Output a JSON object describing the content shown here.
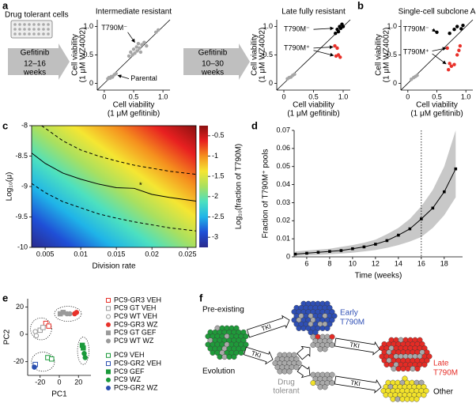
{
  "panel_labels": [
    "a",
    "b",
    "c",
    "d",
    "e",
    "f"
  ],
  "panel_a": {
    "start_label": "Drug tolerant cells",
    "steps": [
      {
        "drug": "Gefitinib",
        "duration": [
          "12–16",
          "weeks"
        ]
      },
      {
        "drug": "Gefitinib",
        "duration": [
          "10–30",
          "weeks"
        ]
      }
    ]
  },
  "panel_f": {
    "pre_existing": "Pre-existing",
    "evolution": "Evolution",
    "early": [
      "Early",
      "T790M"
    ],
    "drug_tolerant": [
      "Drug",
      "tolerant"
    ],
    "late": [
      "Late",
      "T790M"
    ],
    "other": "Other",
    "tki": [
      "TKI",
      "TKI",
      "TKI",
      "TKI"
    ]
  },
  "chart_data": [
    {
      "type": "scatter",
      "title": "Intermediate resistant",
      "xlabel": [
        "Cell viability",
        "(1 μM gefitinib)"
      ],
      "ylabel": [
        "Cell viability",
        "(1 μM WZ4002)"
      ],
      "xlim": [
        -0.12,
        1.12
      ],
      "ylim": [
        -0.12,
        1.12
      ],
      "xticks": [
        0,
        0.5,
        {
          "value": 1,
          "label": "1.0"
        }
      ],
      "yticks": [
        0,
        0.5,
        {
          "value": 1,
          "label": "1.0"
        }
      ],
      "diagonal": true,
      "annotations": [
        "T790M⁻",
        "Parental"
      ],
      "series": [
        {
          "color": "#a6a6a6",
          "x": [
            0.06,
            0.08,
            0.1,
            0.12,
            0.14,
            0.17,
            0.2,
            0.42,
            0.45,
            0.48,
            0.5,
            0.52,
            0.55,
            0.56,
            0.58,
            0.6,
            0.62,
            0.64,
            0.68,
            0.72,
            0.88,
            0.92
          ],
          "values": [
            0.08,
            0.1,
            0.09,
            0.12,
            0.11,
            0.15,
            0.17,
            0.48,
            0.55,
            0.5,
            0.6,
            0.53,
            0.64,
            0.57,
            0.7,
            0.62,
            0.55,
            0.68,
            0.72,
            0.66,
            0.9,
            0.94
          ]
        }
      ]
    },
    {
      "type": "scatter",
      "title": "Late fully resistant",
      "xlabel": [
        "Cell viability",
        "(1 μM gefitinib)"
      ],
      "ylabel": [
        "Cell viability",
        "(1 μM WZ4002)"
      ],
      "xlim": [
        -0.12,
        1.12
      ],
      "ylim": [
        -0.12,
        1.12
      ],
      "xticks": [
        0,
        0.5,
        {
          "value": 1,
          "label": "1.0"
        }
      ],
      "yticks": [
        0,
        0.5,
        {
          "value": 1,
          "label": "1.0"
        }
      ],
      "diagonal": true,
      "annotations": [
        "T790M⁻",
        "T790M⁺"
      ],
      "series": [
        {
          "color": "#a6a6a6",
          "x": [
            0.06,
            0.09,
            0.12,
            0.15,
            0.18
          ],
          "values": [
            0.08,
            0.1,
            0.11,
            0.14,
            0.16
          ]
        },
        {
          "color": "#000000",
          "x": [
            0.87,
            0.9,
            0.92,
            0.94,
            0.96,
            0.98,
            1.0
          ],
          "values": [
            0.88,
            0.95,
            0.91,
            1.0,
            0.97,
            1.04,
            1.0
          ]
        },
        {
          "color": "#e8322b",
          "x": [
            0.86,
            0.9,
            0.92,
            0.88,
            0.95
          ],
          "values": [
            0.66,
            0.62,
            0.5,
            0.48,
            0.46
          ]
        }
      ]
    },
    {
      "type": "scatter",
      "title": "Single-cell subclone A",
      "xlabel": [
        "Cell viability",
        "(1 μM gefitinib)"
      ],
      "ylabel": [
        "Cell viability",
        "(1 μM WZ4002)"
      ],
      "xlim": [
        -0.12,
        1.12
      ],
      "ylim": [
        -0.12,
        1.12
      ],
      "xticks": [
        0,
        0.5,
        {
          "value": 1,
          "label": "1.0"
        }
      ],
      "yticks": [
        0,
        0.5,
        {
          "value": 1,
          "label": "1.0"
        }
      ],
      "diagonal": true,
      "annotations": [
        "T790M⁻",
        "T790M⁺"
      ],
      "series": [
        {
          "color": "#a6a6a6",
          "x": [
            0.06,
            0.1,
            0.13,
            0.16
          ],
          "values": [
            0.07,
            0.1,
            0.12,
            0.14
          ]
        },
        {
          "color": "#000000",
          "x": [
            0.5,
            0.72,
            0.8,
            0.85,
            0.92,
            0.95
          ],
          "values": [
            0.9,
            0.88,
            0.95,
            1.0,
            0.96,
            1.02
          ]
        },
        {
          "color": "#e8322b",
          "x": [
            0.68,
            0.72,
            0.75,
            0.8,
            0.7,
            0.88,
            0.9,
            0.85
          ],
          "values": [
            0.62,
            0.35,
            0.3,
            0.33,
            0.24,
            0.58,
            0.66,
            0.5
          ]
        }
      ]
    },
    {
      "type": "heatmap",
      "xlabel": "Division rate",
      "ylabel": "Log₁₀(μ)",
      "xlim": [
        0.0031,
        0.0262
      ],
      "ylim": [
        -10,
        -8
      ],
      "xticks": [
        0.005,
        0.01,
        0.015,
        0.02,
        0.025
      ],
      "yticks": [
        -8,
        -8.5,
        -9,
        -9.5,
        -10
      ],
      "colormap": "jet",
      "colorbar": {
        "label": "Log₁₀(fraction of T790M)",
        "lim": [
          -3.25,
          -0.25
        ],
        "ticks": [
          -0.5,
          -1,
          -1.5,
          -2,
          -2.5,
          -3
        ]
      },
      "series": [
        {
          "style": "solid",
          "color": "#000000",
          "x": [
            0.0031,
            0.005,
            0.0075,
            0.01,
            0.0125,
            0.015,
            0.0175,
            0.02,
            0.0225,
            0.0262
          ],
          "values": [
            -8.45,
            -8.62,
            -8.78,
            -8.88,
            -8.96,
            -9.02,
            -9.03,
            -9.13,
            -9.18,
            -9.24
          ]
        },
        {
          "style": "dashed",
          "color": "#000000",
          "x": [
            0.0045,
            0.0075,
            0.01,
            0.0125,
            0.015,
            0.0175,
            0.02,
            0.0225,
            0.0262
          ],
          "values": [
            -8.0,
            -8.25,
            -8.4,
            -8.5,
            -8.58,
            -8.65,
            -8.7,
            -8.75,
            -8.8
          ]
        },
        {
          "style": "dashed",
          "color": "#000000",
          "x": [
            0.0031,
            0.005,
            0.0075,
            0.01,
            0.0125,
            0.015,
            0.0175,
            0.02,
            0.0225,
            0.0262
          ],
          "values": [
            -8.95,
            -9.1,
            -9.25,
            -9.35,
            -9.45,
            -9.52,
            -9.58,
            -9.63,
            -9.68,
            -9.73
          ]
        }
      ],
      "marker": {
        "label": "*",
        "x": 0.0184,
        "y": -8.96
      }
    },
    {
      "type": "line",
      "xlabel": "Time (weeks)",
      "ylabel": "Fraction of T790M⁺ pools",
      "xlim": [
        4.9,
        19.6
      ],
      "ylim": [
        0,
        0.07
      ],
      "xticks": [
        6,
        8,
        10,
        12,
        14,
        16,
        18
      ],
      "yticks": [
        0,
        0.01,
        0.02,
        0.03,
        0.04,
        0.05,
        0.06,
        0.07
      ],
      "color": "#000000",
      "band_color": "#c8c8c8",
      "x": [
        5,
        6,
        7,
        8,
        9,
        10,
        11,
        12,
        13,
        14,
        15,
        16,
        17,
        18,
        19
      ],
      "values": [
        0.0015,
        0.002,
        0.0025,
        0.003,
        0.0035,
        0.0045,
        0.0055,
        0.007,
        0.009,
        0.012,
        0.0155,
        0.021,
        0.027,
        0.036,
        0.0487
      ],
      "band_lower": [
        0.0005,
        0.0008,
        0.0011,
        0.0014,
        0.0018,
        0.0023,
        0.003,
        0.0038,
        0.005,
        0.0065,
        0.0085,
        0.011,
        0.016,
        0.023,
        0.033
      ],
      "band_upper": [
        0.003,
        0.0035,
        0.004,
        0.0045,
        0.0055,
        0.0065,
        0.0078,
        0.0095,
        0.0125,
        0.016,
        0.021,
        0.028,
        0.037,
        0.05,
        0.07
      ],
      "vline": 16
    },
    {
      "type": "scatter",
      "xlabel": "PC1",
      "ylabel": "PC2",
      "xlim": [
        -33,
        33
      ],
      "ylim": [
        -30,
        26
      ],
      "xticks": [
        -20,
        0,
        20
      ],
      "yticks": [
        -20,
        0,
        20
      ],
      "series": [
        {
          "name": "PC9-GR3 VEH",
          "color": "#e8322b",
          "marker": "square",
          "filled": false,
          "x": [
            -14,
            -11
          ],
          "values": [
            8,
            6
          ]
        },
        {
          "name": "PC9 GT VEH",
          "color": "#9a9a9a",
          "marker": "square",
          "filled": false,
          "x": [
            -20,
            -17
          ],
          "values": [
            3,
            5
          ]
        },
        {
          "name": "PC9 WT VEH",
          "color": "#9a9a9a",
          "marker": "circle",
          "filled": false,
          "x": [
            -25,
            -24
          ],
          "values": [
            2,
            -1
          ]
        },
        {
          "name": "PC9-GR3 WZ",
          "color": "#e8322b",
          "marker": "circle",
          "filled": true,
          "x": [
            16,
            18
          ],
          "values": [
            15,
            16
          ]
        },
        {
          "name": "PC9 GT GEF",
          "color": "#9a9a9a",
          "marker": "square",
          "filled": true,
          "x": [
            1,
            4
          ],
          "values": [
            15,
            16
          ]
        },
        {
          "name": "PC9 WT WZ",
          "color": "#9a9a9a",
          "marker": "circle",
          "filled": true,
          "x": [
            8,
            11
          ],
          "values": [
            15,
            15
          ]
        },
        {
          "name": "PC9 VEH",
          "color": "#1a9a3a",
          "marker": "square",
          "filled": false,
          "x": [
            -12,
            -8
          ],
          "values": [
            -17,
            -18
          ]
        },
        {
          "name": "PC9-GR2 VEH",
          "color": "#2a4fb0",
          "marker": "square",
          "filled": false,
          "x": [
            -25
          ],
          "values": [
            -22
          ]
        },
        {
          "name": "PC9 GEF",
          "color": "#1a9a3a",
          "marker": "square",
          "filled": true,
          "x": [
            24,
            25
          ],
          "values": [
            -8,
            -10
          ]
        },
        {
          "name": "PC9 WZ",
          "color": "#1a9a3a",
          "marker": "circle",
          "filled": true,
          "x": [
            26,
            27
          ],
          "values": [
            -14,
            -17
          ]
        },
        {
          "name": "PC9-GR2 WZ",
          "color": "#2a4fb0",
          "marker": "circle",
          "filled": true,
          "x": [
            -26
          ],
          "values": [
            -24
          ]
        }
      ]
    }
  ]
}
